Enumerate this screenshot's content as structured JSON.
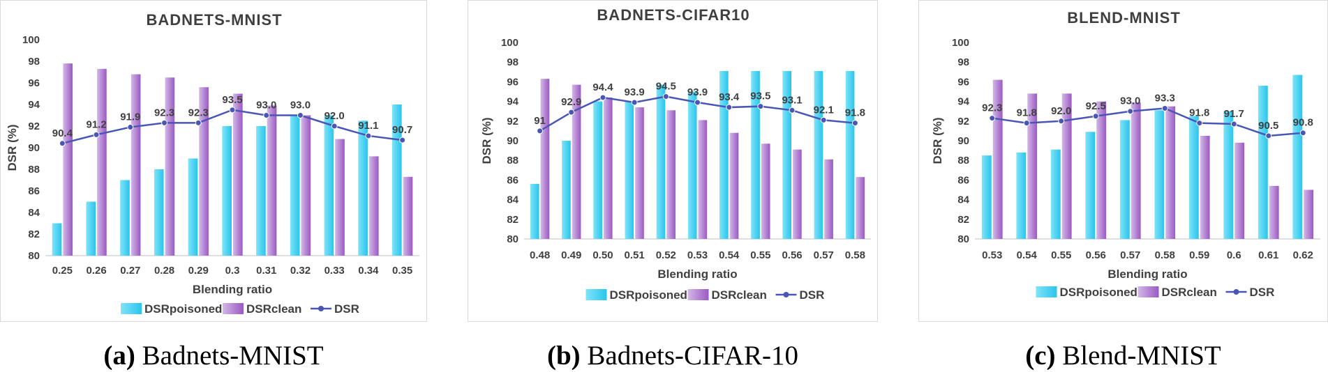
{
  "colors": {
    "poisoned": "#29c5ec",
    "clean": "#9b59c4",
    "line": "#4a56b5"
  },
  "chart_data": [
    {
      "type": "bar",
      "title": "BADNETS-MNIST",
      "xlabel": "Blending ratio",
      "ylabel": "DSR (%)",
      "ylim": [
        80,
        100
      ],
      "yticks": [
        80,
        82,
        84,
        86,
        88,
        90,
        92,
        94,
        96,
        98,
        100
      ],
      "categories": [
        "0.25",
        "0.26",
        "0.27",
        "0.28",
        "0.29",
        "0.3",
        "0.31",
        "0.32",
        "0.33",
        "0.34",
        "0.35"
      ],
      "legend_position": "bottom",
      "grid": false,
      "series": [
        {
          "name": "DSRpoisoned",
          "type": "bar",
          "values": [
            83.0,
            85.0,
            87.0,
            88.0,
            89.0,
            92.0,
            92.0,
            93.0,
            93.0,
            92.5,
            94.0
          ]
        },
        {
          "name": "DSRclean",
          "type": "bar",
          "values": [
            97.8,
            97.3,
            96.8,
            96.5,
            95.6,
            95.0,
            93.9,
            93.0,
            90.8,
            89.2,
            87.3
          ]
        },
        {
          "name": "DSR",
          "type": "line",
          "values": [
            90.4,
            91.2,
            91.9,
            92.3,
            92.3,
            93.5,
            93.0,
            93.0,
            92.0,
            91.1,
            90.7
          ],
          "labels": [
            "90.4",
            "91.2",
            "91.9",
            "92.3",
            "92.3",
            "93.5",
            "93.0",
            "93.0",
            "92.0",
            "91.1",
            "90.7"
          ]
        }
      ],
      "caption_tag": "(a)",
      "caption_text": "Badnets-MNIST"
    },
    {
      "type": "bar",
      "title": "BADNETS-CIFAR10",
      "xlabel": "Blending ratio",
      "ylabel": "DSR (%)",
      "ylim": [
        80,
        100
      ],
      "yticks": [
        80,
        82,
        84,
        86,
        88,
        90,
        92,
        94,
        96,
        98,
        100
      ],
      "categories": [
        "0.48",
        "0.49",
        "0.50",
        "0.51",
        "0.52",
        "0.53",
        "0.54",
        "0.55",
        "0.56",
        "0.57",
        "0.58"
      ],
      "legend_position": "bottom",
      "grid": false,
      "series": [
        {
          "name": "DSRpoisoned",
          "type": "bar",
          "values": [
            85.6,
            90.0,
            94.0,
            94.0,
            95.7,
            95.0,
            97.1,
            97.1,
            97.1,
            97.1,
            97.1
          ]
        },
        {
          "name": "DSRclean",
          "type": "bar",
          "values": [
            96.3,
            95.7,
            94.4,
            93.4,
            93.1,
            92.1,
            90.8,
            89.7,
            89.1,
            88.1,
            86.3
          ]
        },
        {
          "name": "DSR",
          "type": "line",
          "values": [
            91.0,
            92.9,
            94.4,
            93.9,
            94.5,
            93.9,
            93.4,
            93.5,
            93.1,
            92.1,
            91.8
          ],
          "labels": [
            "91",
            "92.9",
            "94.4",
            "93.9",
            "94.5",
            "93.9",
            "93.4",
            "93.5",
            "93.1",
            "92.1",
            "91.8"
          ]
        }
      ],
      "caption_tag": "(b)",
      "caption_text": "Badnets-CIFAR-10"
    },
    {
      "type": "bar",
      "title": "BLEND-MNIST",
      "xlabel": "Blending ratio",
      "ylabel": "DSR (%)",
      "ylim": [
        80,
        100
      ],
      "yticks": [
        80,
        82,
        84,
        86,
        88,
        90,
        92,
        94,
        96,
        98,
        100
      ],
      "categories": [
        "0.53",
        "0.54",
        "0.55",
        "0.56",
        "0.57",
        "0.58",
        "0.59",
        "0.6",
        "0.61",
        "0.62"
      ],
      "legend_position": "bottom",
      "grid": false,
      "series": [
        {
          "name": "DSRpoisoned",
          "type": "bar",
          "values": [
            88.5,
            88.8,
            89.1,
            90.9,
            92.1,
            93.1,
            92.5,
            93.0,
            95.6,
            96.7
          ]
        },
        {
          "name": "DSRclean",
          "type": "bar",
          "values": [
            96.2,
            94.8,
            94.8,
            94.0,
            93.9,
            93.5,
            90.5,
            89.8,
            85.4,
            85.0
          ]
        },
        {
          "name": "DSR",
          "type": "line",
          "values": [
            92.3,
            91.8,
            92.0,
            92.5,
            93.0,
            93.3,
            91.8,
            91.7,
            90.5,
            90.8
          ],
          "labels": [
            "92.3",
            "91.8",
            "92.0",
            "92.5",
            "93.0",
            "93.3",
            "91.8",
            "91.7",
            "90.5",
            "90.8"
          ]
        }
      ],
      "caption_tag": "(c)",
      "caption_text": "Blend-MNIST"
    }
  ]
}
